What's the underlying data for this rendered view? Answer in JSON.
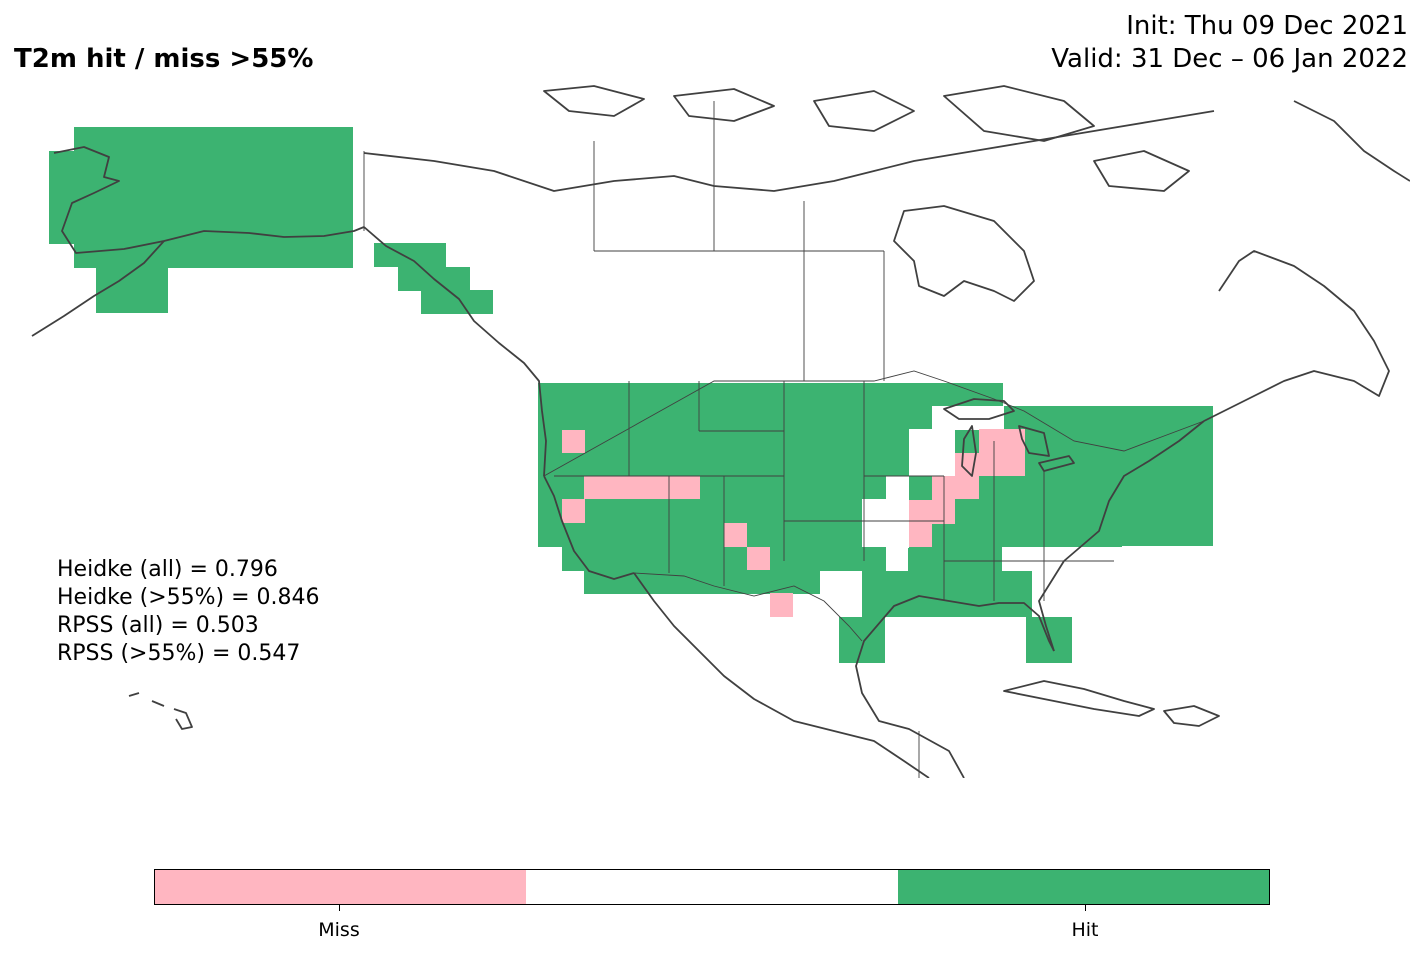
{
  "figure": {
    "title": "T2m hit / miss  >55%",
    "init": "Init: Thu 09 Dec 2021",
    "valid": "Valid: 31 Dec – 06 Jan 2022"
  },
  "scores": [
    {
      "text": "Heidke (all) = 0.796"
    },
    {
      "text": "Heidke (>55%) = 0.846"
    },
    {
      "text": "RPSS (all) = 0.503"
    },
    {
      "text": "RPSS (>55%) = 0.547"
    }
  ],
  "colors": {
    "hit": "#3cb371",
    "miss": "#ffb6c1",
    "neutral": "#ffffff",
    "coast": "#404040",
    "border": "#000000"
  },
  "colorbar": {
    "segments": [
      "miss",
      "neutral",
      "hit"
    ],
    "labels": [
      "Miss",
      "Hit"
    ]
  }
}
